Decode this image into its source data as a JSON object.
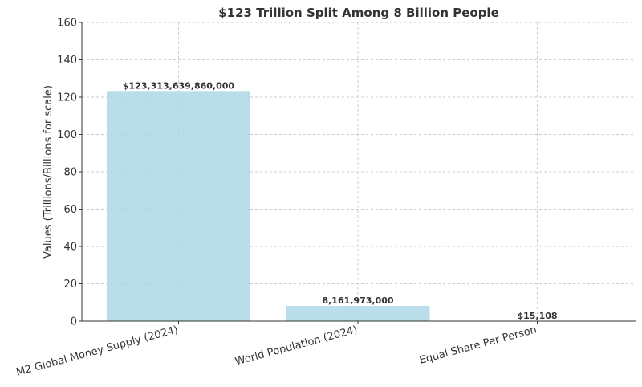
{
  "chart_data": {
    "type": "bar",
    "title": "$123 Trillion Split Among 8 Billion People",
    "xlabel": "",
    "ylabel": "Values (Trillions/Billions for scale)",
    "ylim": [
      0,
      160
    ],
    "yticks": [
      0,
      20,
      40,
      60,
      80,
      100,
      120,
      140,
      160
    ],
    "grid": true,
    "categories": [
      "M2 Global Money Supply (2024)",
      "World Population (2024)",
      "Equal Share Per Person"
    ],
    "values": [
      123.31363986,
      8.161973,
      0.015108
    ],
    "data_labels": [
      "$123,313,639,860,000",
      "8,161,973,000",
      "$15,108"
    ],
    "bar_color": "#add8e6"
  }
}
